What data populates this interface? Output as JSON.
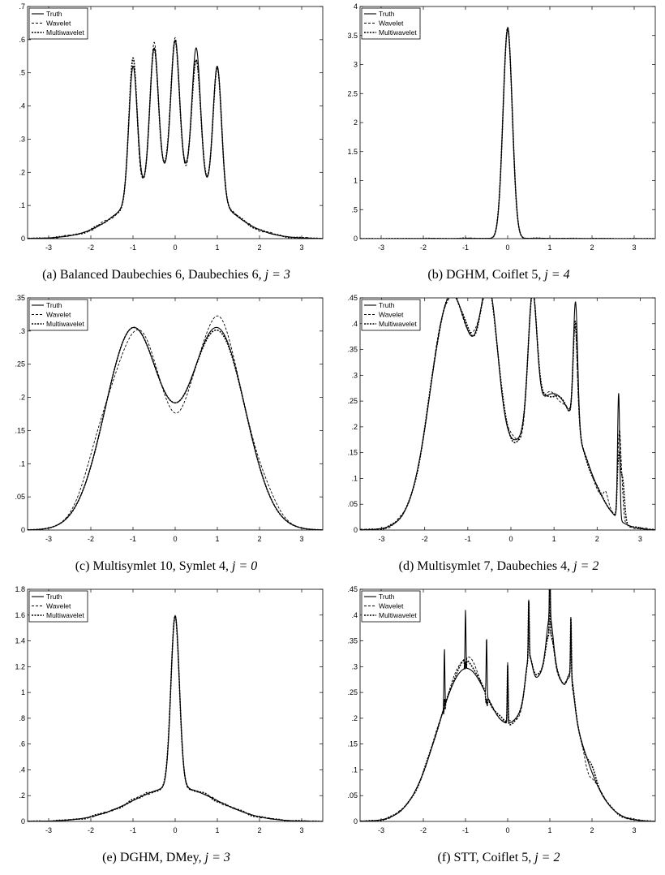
{
  "legend_labels": [
    "Truth",
    "Wavelet",
    "Multiwavelet"
  ],
  "chart_data": [
    {
      "type": "line",
      "caption": "(a) Balanced Daubechies 6, Daubechies 6,",
      "caption_j": "j = 3",
      "xlim": [
        -3.5,
        3.5
      ],
      "ylim": [
        0,
        0.7
      ],
      "xticks": [
        -3,
        -2,
        -1,
        0,
        1,
        2,
        3
      ],
      "yticks": [
        0,
        0.1,
        0.2,
        0.3,
        0.4,
        0.5,
        0.6,
        0.7
      ],
      "grid": false,
      "legend": "top-left",
      "density": {
        "kind": "claw",
        "params": {}
      },
      "series": [
        {
          "name": "Truth",
          "style": "solid",
          "width": 1.1,
          "deviation": {
            "amp": 0,
            "bumps": []
          }
        },
        {
          "name": "Wavelet",
          "style": "dashed",
          "width": 0.9,
          "deviation": {
            "amp": 0.009,
            "bumps": [
              {
                "x": -0.5,
                "a": 0.02,
                "w": 0.05
              },
              {
                "x": 0.5,
                "a": -0.04,
                "w": 0.06
              },
              {
                "x": -0.85,
                "a": -0.03,
                "w": 0.05
              }
            ]
          }
        },
        {
          "name": "Multiwavelet",
          "style": "dotted",
          "width": 1.6,
          "deviation": {
            "amp": 0.006,
            "bumps": [
              {
                "x": 0.5,
                "a": -0.035,
                "w": 0.07
              },
              {
                "x": -1.0,
                "a": 0.02,
                "w": 0.05
              }
            ]
          }
        }
      ]
    },
    {
      "type": "line",
      "caption": "(b) DGHM, Coiflet 5,",
      "caption_j": "j = 4",
      "xlim": [
        -3.5,
        3.5
      ],
      "ylim": [
        0,
        4
      ],
      "xticks": [
        -3,
        -2,
        -1,
        0,
        1,
        2,
        3
      ],
      "yticks": [
        0,
        0.5,
        1,
        1.5,
        2,
        2.5,
        3,
        3.5,
        4
      ],
      "grid": false,
      "legend": "top-left",
      "density": {
        "kind": "spike",
        "params": {
          "mu": 0,
          "sigma": 0.11,
          "peak": 3.6
        }
      },
      "series": [
        {
          "name": "Truth",
          "style": "solid",
          "width": 1.1,
          "deviation": {
            "amp": 0,
            "bumps": []
          }
        },
        {
          "name": "Wavelet",
          "style": "dashed",
          "width": 0.9,
          "deviation": {
            "amp": 0.01,
            "bumps": [
              {
                "x": 0.02,
                "a": 0.04,
                "w": 0.03
              }
            ]
          }
        },
        {
          "name": "Multiwavelet",
          "style": "dotted",
          "width": 1.6,
          "deviation": {
            "amp": 0.008,
            "bumps": [
              {
                "x": 0.0,
                "a": 0.03,
                "w": 0.03
              }
            ]
          }
        }
      ]
    },
    {
      "type": "line",
      "caption": "(c) Multisymlet 10, Symlet 4,",
      "caption_j": "j = 0",
      "xlim": [
        -3.5,
        3.5
      ],
      "ylim": [
        0,
        0.35
      ],
      "xticks": [
        -3,
        -2,
        -1,
        0,
        1,
        2,
        3
      ],
      "yticks": [
        0,
        0.05,
        0.1,
        0.15,
        0.2,
        0.25,
        0.3,
        0.35
      ],
      "grid": false,
      "legend": "top-left",
      "density": {
        "kind": "bimodal",
        "params": {
          "mu": 1,
          "sigma": 0.66
        }
      },
      "series": [
        {
          "name": "Truth",
          "style": "solid",
          "width": 1.1,
          "deviation": {
            "amp": 0,
            "bumps": []
          }
        },
        {
          "name": "Wavelet",
          "style": "dashed",
          "width": 0.9,
          "deviation": {
            "amp": 0,
            "bumps": [
              {
                "x": -1.9,
                "a": 0.022,
                "w": 0.3
              },
              {
                "x": -1.3,
                "a": -0.02,
                "w": 0.35
              },
              {
                "x": -0.7,
                "a": 0.012,
                "w": 0.25
              },
              {
                "x": 0.05,
                "a": -0.016,
                "w": 0.22
              },
              {
                "x": 1.05,
                "a": 0.018,
                "w": 0.22
              },
              {
                "x": 2.2,
                "a": 0.012,
                "w": 0.25
              }
            ]
          }
        },
        {
          "name": "Multiwavelet",
          "style": "dotted",
          "width": 1.6,
          "deviation": {
            "amp": 0,
            "bumps": [
              {
                "x": 1.0,
                "a": -0.004,
                "w": 0.3
              }
            ]
          }
        }
      ]
    },
    {
      "type": "line",
      "caption": "(d) Multisymlet 7, Daubechies 4,",
      "caption_j": "j = 2",
      "xlim": [
        -3.5,
        3.35
      ],
      "ylim": [
        0,
        0.45
      ],
      "xticks": [
        -3,
        -2,
        -1,
        0,
        1,
        2,
        3
      ],
      "yticks": [
        0,
        0.05,
        0.1,
        0.15,
        0.2,
        0.25,
        0.3,
        0.35,
        0.4,
        0.45
      ],
      "grid": false,
      "legend": "top-left",
      "density": {
        "kind": "claw-asym",
        "params": {}
      },
      "series": [
        {
          "name": "Truth",
          "style": "solid",
          "width": 1.1,
          "deviation": {
            "amp": 0,
            "bumps": []
          }
        },
        {
          "name": "Wavelet",
          "style": "dashed",
          "width": 0.9,
          "deviation": {
            "amp": 0.01,
            "bumps": [
              {
                "x": 1.52,
                "a": -0.06,
                "w": 0.04
              },
              {
                "x": 2.5,
                "a": -0.14,
                "w": 0.02
              },
              {
                "x": 2.55,
                "a": 0.11,
                "w": 0.04
              },
              {
                "x": 2.2,
                "a": 0.02,
                "w": 0.05
              }
            ]
          }
        },
        {
          "name": "Multiwavelet",
          "style": "dotted",
          "width": 1.6,
          "deviation": {
            "amp": 0.008,
            "bumps": [
              {
                "x": 1.52,
                "a": -0.05,
                "w": 0.04
              },
              {
                "x": 2.5,
                "a": -0.15,
                "w": 0.02
              },
              {
                "x": 2.58,
                "a": 0.09,
                "w": 0.05
              },
              {
                "x": -1.3,
                "a": 0.01,
                "w": 0.05
              }
            ]
          }
        }
      ]
    },
    {
      "type": "line",
      "caption": "(e) DGHM, DMey,",
      "caption_j": "j = 3",
      "xlim": [
        -3.5,
        3.5
      ],
      "ylim": [
        0,
        1.8
      ],
      "xticks": [
        -3,
        -2,
        -1,
        0,
        1,
        2,
        3
      ],
      "yticks": [
        0,
        0.2,
        0.4,
        0.6,
        0.8,
        1,
        1.2,
        1.4,
        1.6,
        1.8
      ],
      "grid": false,
      "legend": "top-left",
      "density": {
        "kind": "kurtotic",
        "params": {}
      },
      "series": [
        {
          "name": "Truth",
          "style": "solid",
          "width": 1.1,
          "deviation": {
            "amp": 0,
            "bumps": []
          }
        },
        {
          "name": "Wavelet",
          "style": "dashed",
          "width": 0.9,
          "deviation": {
            "amp": 0.012,
            "bumps": [
              {
                "x": 0.0,
                "a": -0.02,
                "w": 0.03
              }
            ]
          }
        },
        {
          "name": "Multiwavelet",
          "style": "dotted",
          "width": 1.6,
          "deviation": {
            "amp": 0.014,
            "bumps": [
              {
                "x": -0.7,
                "a": 0.015,
                "w": 0.05
              }
            ]
          }
        }
      ]
    },
    {
      "type": "line",
      "caption": "(f) STT, Coiflet 5,",
      "caption_j": "j = 2",
      "xlim": [
        -3.5,
        3.5
      ],
      "ylim": [
        0,
        0.45
      ],
      "xticks": [
        -3,
        -2,
        -1,
        0,
        1,
        2,
        3
      ],
      "yticks": [
        0,
        0.05,
        0.1,
        0.15,
        0.2,
        0.25,
        0.3,
        0.35,
        0.4,
        0.45
      ],
      "grid": false,
      "legend": "top-left",
      "density": {
        "kind": "dbl-claw",
        "params": {}
      },
      "series": [
        {
          "name": "Truth",
          "style": "solid",
          "width": 1.1,
          "deviation": {
            "amp": 0,
            "bumps": []
          }
        },
        {
          "name": "Wavelet",
          "style": "dashed",
          "width": 0.9,
          "deviation": {
            "amp": 0.006,
            "bumps": [
              {
                "x": -1.5,
                "a": -0.1,
                "w": 0.012
              },
              {
                "x": -1.0,
                "a": -0.12,
                "w": 0.012
              },
              {
                "x": -0.5,
                "a": -0.12,
                "w": 0.012
              },
              {
                "x": -1.0,
                "a": 0.02,
                "w": 0.25
              },
              {
                "x": 1.0,
                "a": -0.035,
                "w": 0.05
              },
              {
                "x": 1.5,
                "a": -0.012,
                "w": 0.05
              },
              {
                "x": 1.9,
                "a": -0.02,
                "w": 0.08
              }
            ]
          }
        },
        {
          "name": "Multiwavelet",
          "style": "dotted",
          "width": 1.6,
          "deviation": {
            "amp": 0.006,
            "bumps": [
              {
                "x": -1.5,
                "a": -0.1,
                "w": 0.012
              },
              {
                "x": -1.0,
                "a": -0.12,
                "w": 0.012
              },
              {
                "x": -0.5,
                "a": -0.12,
                "w": 0.012
              },
              {
                "x": -1.0,
                "a": 0.012,
                "w": 0.25
              },
              {
                "x": 1.0,
                "a": -0.03,
                "w": 0.05
              },
              {
                "x": 2.0,
                "a": 0.012,
                "w": 0.08
              }
            ]
          }
        }
      ]
    }
  ]
}
